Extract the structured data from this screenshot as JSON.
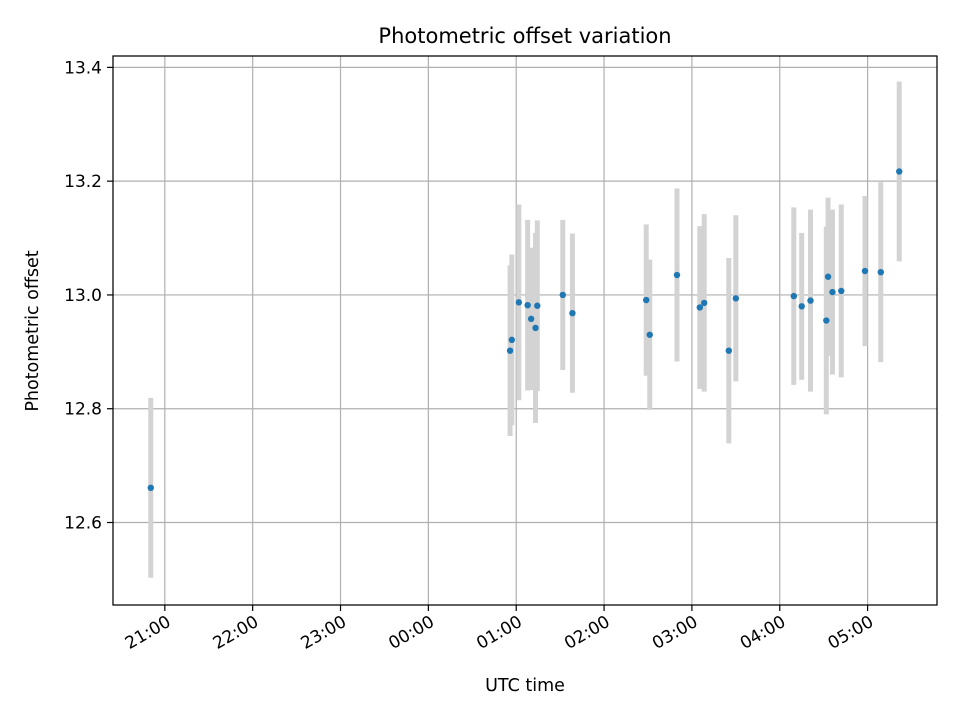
{
  "chart_data": {
    "type": "scatter",
    "title": "Photometric offset variation",
    "xlabel": "UTC time",
    "ylabel": "Photometric offset",
    "x_unit": "UTC time of day, hours after midnight (negative values are the previous evening)",
    "xlim": [
      -3.59,
      5.79
    ],
    "ylim": [
      12.455,
      13.42
    ],
    "grid": true,
    "legend": null,
    "colors": {
      "points": "#1f77b4",
      "errorbars": "#d3d3d3",
      "grid": "#b0b0b0"
    },
    "x_ticks": [
      {
        "value": -3,
        "label": "21:00"
      },
      {
        "value": -2,
        "label": "22:00"
      },
      {
        "value": -1,
        "label": "23:00"
      },
      {
        "value": 0,
        "label": "00:00"
      },
      {
        "value": 1,
        "label": "01:00"
      },
      {
        "value": 2,
        "label": "02:00"
      },
      {
        "value": 3,
        "label": "03:00"
      },
      {
        "value": 4,
        "label": "04:00"
      },
      {
        "value": 5,
        "label": "05:00"
      }
    ],
    "y_ticks": [
      {
        "value": 12.6,
        "label": "12.6"
      },
      {
        "value": 12.8,
        "label": "12.8"
      },
      {
        "value": 13.0,
        "label": "13.0"
      },
      {
        "value": 13.2,
        "label": "13.2"
      },
      {
        "value": 13.4,
        "label": "13.4"
      }
    ],
    "points": [
      {
        "x": -3.16,
        "y": 12.661,
        "err": 0.158
      },
      {
        "x": 0.93,
        "y": 12.902,
        "err": 0.15
      },
      {
        "x": 0.95,
        "y": 12.921,
        "err": 0.15
      },
      {
        "x": 1.03,
        "y": 12.987,
        "err": 0.172
      },
      {
        "x": 1.13,
        "y": 12.982,
        "err": 0.15
      },
      {
        "x": 1.17,
        "y": 12.958,
        "err": 0.125
      },
      {
        "x": 1.22,
        "y": 12.942,
        "err": 0.167
      },
      {
        "x": 1.24,
        "y": 12.981,
        "err": 0.15
      },
      {
        "x": 1.53,
        "y": 13.0,
        "err": 0.132
      },
      {
        "x": 1.64,
        "y": 12.968,
        "err": 0.14
      },
      {
        "x": 2.48,
        "y": 12.991,
        "err": 0.133
      },
      {
        "x": 2.52,
        "y": 12.93,
        "err": 0.132
      },
      {
        "x": 2.83,
        "y": 13.035,
        "err": 0.152
      },
      {
        "x": 3.09,
        "y": 12.978,
        "err": 0.143
      },
      {
        "x": 3.14,
        "y": 12.986,
        "err": 0.156
      },
      {
        "x": 3.42,
        "y": 12.902,
        "err": 0.163
      },
      {
        "x": 3.5,
        "y": 12.994,
        "err": 0.146
      },
      {
        "x": 4.16,
        "y": 12.998,
        "err": 0.156
      },
      {
        "x": 4.25,
        "y": 12.98,
        "err": 0.129
      },
      {
        "x": 4.35,
        "y": 12.99,
        "err": 0.16
      },
      {
        "x": 4.53,
        "y": 12.955,
        "err": 0.165
      },
      {
        "x": 4.55,
        "y": 13.032,
        "err": 0.139
      },
      {
        "x": 4.6,
        "y": 13.005,
        "err": 0.145
      },
      {
        "x": 4.7,
        "y": 13.007,
        "err": 0.152
      },
      {
        "x": 4.97,
        "y": 13.042,
        "err": 0.132
      },
      {
        "x": 5.15,
        "y": 13.04,
        "err": 0.158
      },
      {
        "x": 5.36,
        "y": 13.217,
        "err": 0.158
      }
    ]
  }
}
